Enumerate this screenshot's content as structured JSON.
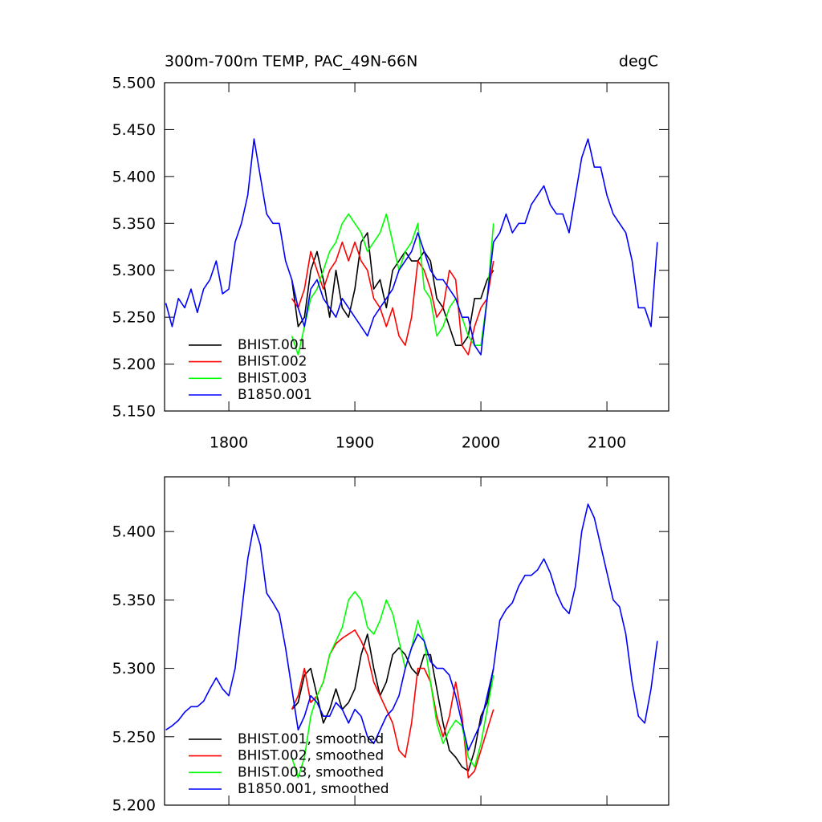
{
  "chart_data": [
    {
      "type": "line",
      "title": "300m-700m TEMP, PAC_49N-66N",
      "units": "degC",
      "xlim": [
        1749,
        2149
      ],
      "ylim": [
        5.15,
        5.5
      ],
      "xticks": [
        1800,
        1900,
        2000,
        2100
      ],
      "xtick_labels": true,
      "yticks": [
        {
          "value": 5.15,
          "label": "5.150"
        },
        {
          "value": 5.2,
          "label": "5.200"
        },
        {
          "value": 5.25,
          "label": "5.250"
        },
        {
          "value": 5.3,
          "label": "5.300"
        },
        {
          "value": 5.35,
          "label": "5.350"
        },
        {
          "value": 5.4,
          "label": "5.400"
        },
        {
          "value": 5.45,
          "label": "5.450"
        },
        {
          "value": 5.5,
          "label": "5.500"
        }
      ],
      "legend": "lower left",
      "x": [
        1750,
        1755,
        1760,
        1765,
        1770,
        1775,
        1780,
        1785,
        1790,
        1795,
        1800,
        1805,
        1810,
        1815,
        1820,
        1825,
        1830,
        1835,
        1840,
        1845,
        1850,
        1855,
        1860,
        1865,
        1870,
        1875,
        1880,
        1885,
        1890,
        1895,
        1900,
        1905,
        1910,
        1915,
        1920,
        1925,
        1930,
        1935,
        1940,
        1945,
        1950,
        1955,
        1960,
        1965,
        1970,
        1975,
        1980,
        1985,
        1990,
        1995,
        2000,
        2005,
        2010,
        2015,
        2020,
        2025,
        2030,
        2035,
        2040,
        2045,
        2050,
        2055,
        2060,
        2065,
        2070,
        2075,
        2080,
        2085,
        2090,
        2095,
        2100,
        2105,
        2110,
        2115,
        2120,
        2125,
        2130,
        2135,
        2140
      ],
      "series": [
        {
          "name": "BHIST.001",
          "color": "#000000",
          "values": [
            null,
            null,
            null,
            null,
            null,
            null,
            null,
            null,
            null,
            null,
            null,
            null,
            null,
            null,
            null,
            null,
            null,
            null,
            null,
            null,
            5.29,
            5.24,
            5.25,
            5.3,
            5.32,
            5.29,
            5.25,
            5.3,
            5.26,
            5.25,
            5.28,
            5.33,
            5.34,
            5.28,
            5.29,
            5.26,
            5.3,
            5.31,
            5.32,
            5.31,
            5.31,
            5.32,
            5.31,
            5.27,
            5.26,
            5.24,
            5.22,
            5.22,
            5.23,
            5.27,
            5.27,
            5.29,
            5.3,
            null,
            null,
            null,
            null,
            null,
            null,
            null,
            null,
            null,
            null,
            null,
            null,
            null,
            null,
            null,
            null,
            null,
            null,
            null,
            null,
            null,
            null,
            null,
            null,
            null,
            null
          ]
        },
        {
          "name": "BHIST.002",
          "color": "#ff0000",
          "values": [
            null,
            null,
            null,
            null,
            null,
            null,
            null,
            null,
            null,
            null,
            null,
            null,
            null,
            null,
            null,
            null,
            null,
            null,
            null,
            null,
            5.27,
            5.26,
            5.28,
            5.32,
            5.3,
            5.28,
            5.3,
            5.31,
            5.33,
            5.31,
            5.33,
            5.31,
            5.3,
            5.27,
            5.26,
            5.24,
            5.26,
            5.23,
            5.22,
            5.25,
            5.31,
            5.3,
            5.28,
            5.25,
            5.26,
            5.3,
            5.29,
            5.22,
            5.21,
            5.24,
            5.26,
            5.27,
            5.31,
            null,
            null,
            null,
            null,
            null,
            null,
            null,
            null,
            null,
            null,
            null,
            null,
            null,
            null,
            null,
            null,
            null,
            null,
            null,
            null,
            null,
            null,
            null,
            null,
            null,
            null
          ]
        },
        {
          "name": "BHIST.003",
          "color": "#00ff00",
          "values": [
            null,
            null,
            null,
            null,
            null,
            null,
            null,
            null,
            null,
            null,
            null,
            null,
            null,
            null,
            null,
            null,
            null,
            null,
            null,
            null,
            5.23,
            5.21,
            5.24,
            5.27,
            5.28,
            5.3,
            5.32,
            5.33,
            5.35,
            5.36,
            5.35,
            5.34,
            5.32,
            5.33,
            5.34,
            5.36,
            5.33,
            5.3,
            5.32,
            5.33,
            5.35,
            5.28,
            5.27,
            5.23,
            5.24,
            5.26,
            5.27,
            5.25,
            5.23,
            5.22,
            5.22,
            5.27,
            5.35,
            null,
            null,
            null,
            null,
            null,
            null,
            null,
            null,
            null,
            null,
            null,
            null,
            null,
            null,
            null,
            null,
            null,
            null,
            null,
            null,
            null,
            null,
            null,
            null,
            null,
            null
          ]
        },
        {
          "name": "B1850.001",
          "color": "#0000ff",
          "values": [
            5.265,
            5.24,
            5.27,
            5.26,
            5.28,
            5.255,
            5.28,
            5.29,
            5.31,
            5.275,
            5.28,
            5.33,
            5.35,
            5.38,
            5.44,
            5.4,
            5.36,
            5.35,
            5.35,
            5.31,
            5.29,
            5.26,
            5.24,
            5.28,
            5.29,
            5.27,
            5.26,
            5.25,
            5.27,
            5.26,
            5.25,
            5.24,
            5.23,
            5.25,
            5.26,
            5.27,
            5.28,
            5.3,
            5.31,
            5.32,
            5.34,
            5.32,
            5.3,
            5.29,
            5.29,
            5.28,
            5.27,
            5.25,
            5.25,
            5.22,
            5.21,
            5.27,
            5.33,
            5.34,
            5.36,
            5.34,
            5.35,
            5.35,
            5.37,
            5.38,
            5.39,
            5.37,
            5.36,
            5.36,
            5.34,
            5.38,
            5.42,
            5.44,
            5.41,
            5.41,
            5.38,
            5.36,
            5.35,
            5.34,
            5.31,
            5.26,
            5.26,
            5.24,
            5.33
          ]
        }
      ]
    },
    {
      "type": "line",
      "xlim": [
        1749,
        2149
      ],
      "ylim": [
        5.2,
        5.44
      ],
      "xticks": [
        1800,
        1900,
        2000,
        2100
      ],
      "xtick_labels": false,
      "yticks": [
        {
          "value": 5.2,
          "label": "5.200"
        },
        {
          "value": 5.25,
          "label": "5.250"
        },
        {
          "value": 5.3,
          "label": "5.300"
        },
        {
          "value": 5.35,
          "label": "5.350"
        },
        {
          "value": 5.4,
          "label": "5.400"
        }
      ],
      "legend": "lower left",
      "x": [
        1750,
        1755,
        1760,
        1765,
        1770,
        1775,
        1780,
        1785,
        1790,
        1795,
        1800,
        1805,
        1810,
        1815,
        1820,
        1825,
        1830,
        1835,
        1840,
        1845,
        1850,
        1855,
        1860,
        1865,
        1870,
        1875,
        1880,
        1885,
        1890,
        1895,
        1900,
        1905,
        1910,
        1915,
        1920,
        1925,
        1930,
        1935,
        1940,
        1945,
        1950,
        1955,
        1960,
        1965,
        1970,
        1975,
        1980,
        1985,
        1990,
        1995,
        2000,
        2005,
        2010,
        2015,
        2020,
        2025,
        2030,
        2035,
        2040,
        2045,
        2050,
        2055,
        2060,
        2065,
        2070,
        2075,
        2080,
        2085,
        2090,
        2095,
        2100,
        2105,
        2110,
        2115,
        2120,
        2125,
        2130,
        2135,
        2140
      ],
      "series": [
        {
          "name": "BHIST.001, smoothed",
          "color": "#000000",
          "values": [
            null,
            null,
            null,
            null,
            null,
            null,
            null,
            null,
            null,
            null,
            null,
            null,
            null,
            null,
            null,
            null,
            null,
            null,
            null,
            null,
            5.27,
            5.275,
            5.295,
            5.3,
            5.28,
            5.26,
            5.27,
            5.285,
            5.27,
            5.275,
            5.285,
            5.31,
            5.325,
            5.3,
            5.28,
            5.29,
            5.31,
            5.315,
            5.31,
            5.3,
            5.295,
            5.31,
            5.31,
            5.285,
            5.26,
            5.24,
            5.235,
            5.228,
            5.225,
            5.24,
            5.265,
            5.275,
            5.3,
            null,
            null,
            null,
            null,
            null,
            null,
            null,
            null,
            null,
            null,
            null,
            null,
            null,
            null,
            null,
            null,
            null,
            null,
            null,
            null,
            null,
            null,
            null,
            null,
            null,
            null
          ]
        },
        {
          "name": "BHIST.002, smoothed",
          "color": "#ff0000",
          "values": [
            null,
            null,
            null,
            null,
            null,
            null,
            null,
            null,
            null,
            null,
            null,
            null,
            null,
            null,
            null,
            null,
            null,
            null,
            null,
            null,
            5.27,
            5.28,
            5.3,
            5.275,
            5.28,
            5.29,
            5.31,
            5.318,
            5.322,
            5.325,
            5.328,
            5.32,
            5.31,
            5.29,
            5.28,
            5.27,
            5.26,
            5.24,
            5.235,
            5.26,
            5.3,
            5.3,
            5.29,
            5.265,
            5.25,
            5.265,
            5.29,
            5.265,
            5.22,
            5.225,
            5.24,
            5.255,
            5.27,
            null,
            null,
            null,
            null,
            null,
            null,
            null,
            null,
            null,
            null,
            null,
            null,
            null,
            null,
            null,
            null,
            null,
            null,
            null,
            null,
            null,
            null,
            null,
            null,
            null,
            null
          ]
        },
        {
          "name": "BHIST.003, smoothed",
          "color": "#00ff00",
          "values": [
            null,
            null,
            null,
            null,
            null,
            null,
            null,
            null,
            null,
            null,
            null,
            null,
            null,
            null,
            null,
            null,
            null,
            null,
            null,
            null,
            5.235,
            5.22,
            5.235,
            5.265,
            5.28,
            5.29,
            5.31,
            5.32,
            5.33,
            5.35,
            5.356,
            5.35,
            5.33,
            5.325,
            5.335,
            5.35,
            5.34,
            5.32,
            5.3,
            5.315,
            5.335,
            5.32,
            5.29,
            5.26,
            5.245,
            5.255,
            5.262,
            5.258,
            5.235,
            5.228,
            5.245,
            5.27,
            5.295,
            null,
            null,
            null,
            null,
            null,
            null,
            null,
            null,
            null,
            null,
            null,
            null,
            null,
            null,
            null,
            null,
            null,
            null,
            null,
            null,
            null,
            null,
            null,
            null,
            null,
            null
          ]
        },
        {
          "name": "B1850.001, smoothed",
          "color": "#0000ff",
          "values": [
            5.255,
            5.258,
            5.262,
            5.268,
            5.272,
            5.272,
            5.276,
            5.285,
            5.293,
            5.285,
            5.28,
            5.3,
            5.34,
            5.38,
            5.405,
            5.39,
            5.355,
            5.348,
            5.34,
            5.315,
            5.285,
            5.255,
            5.265,
            5.28,
            5.275,
            5.265,
            5.265,
            5.275,
            5.27,
            5.26,
            5.27,
            5.265,
            5.25,
            5.245,
            5.255,
            5.265,
            5.27,
            5.28,
            5.3,
            5.315,
            5.325,
            5.32,
            5.305,
            5.3,
            5.3,
            5.295,
            5.28,
            5.26,
            5.24,
            5.25,
            5.26,
            5.28,
            5.3,
            5.335,
            5.343,
            5.348,
            5.36,
            5.368,
            5.368,
            5.372,
            5.38,
            5.37,
            5.355,
            5.345,
            5.34,
            5.36,
            5.4,
            5.42,
            5.41,
            5.39,
            5.37,
            5.35,
            5.345,
            5.325,
            5.29,
            5.265,
            5.26,
            5.285,
            5.32
          ]
        }
      ]
    }
  ]
}
